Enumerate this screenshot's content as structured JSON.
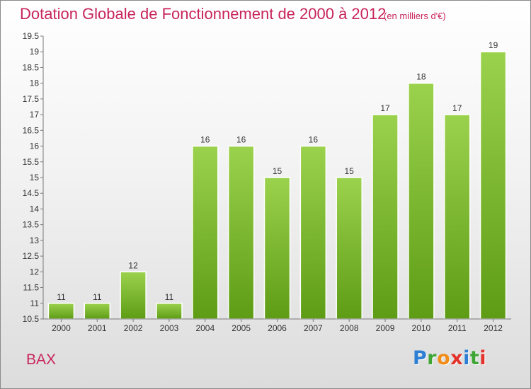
{
  "title": "Dotation Globale de Fonctionnement de 2000 à 2012",
  "units": "(en milliers d'€)",
  "commune": "BAX",
  "logo": {
    "letters": [
      "P",
      "r",
      "o",
      "x",
      "i",
      "t",
      "i"
    ],
    "colors": [
      "#2d7fd4",
      "#3fa535",
      "#f28c1a",
      "#e2322a",
      "#2d7fd4",
      "#3fa535",
      "#e2322a"
    ]
  },
  "colors": {
    "bar_top": "#9bd24d",
    "bar_bottom": "#5e9c15",
    "title": "#c8245c"
  },
  "chart_data": {
    "type": "bar",
    "categories": [
      "2000",
      "2001",
      "2002",
      "2003",
      "2004",
      "2005",
      "2006",
      "2007",
      "2008",
      "2009",
      "2010",
      "2011",
      "2012"
    ],
    "values": [
      11,
      11,
      12,
      11,
      16,
      16,
      15,
      16,
      15,
      17,
      18,
      17,
      19
    ],
    "data_labels": [
      "11",
      "11",
      "12",
      "11",
      "16",
      "16",
      "15",
      "16",
      "15",
      "17",
      "18",
      "17",
      "19"
    ],
    "title": "Dotation Globale de Fonctionnement de 2000 à 2012",
    "xlabel": "",
    "ylabel": "",
    "ylim": [
      10.5,
      19.5
    ],
    "yticks": [
      "10.5",
      "11",
      "11.5",
      "12",
      "12.5",
      "13",
      "13.5",
      "14",
      "14.5",
      "15",
      "15.5",
      "16",
      "16.5",
      "17",
      "17.5",
      "18",
      "18.5",
      "19",
      "19.5"
    ],
    "grid": false,
    "legend": "none"
  }
}
